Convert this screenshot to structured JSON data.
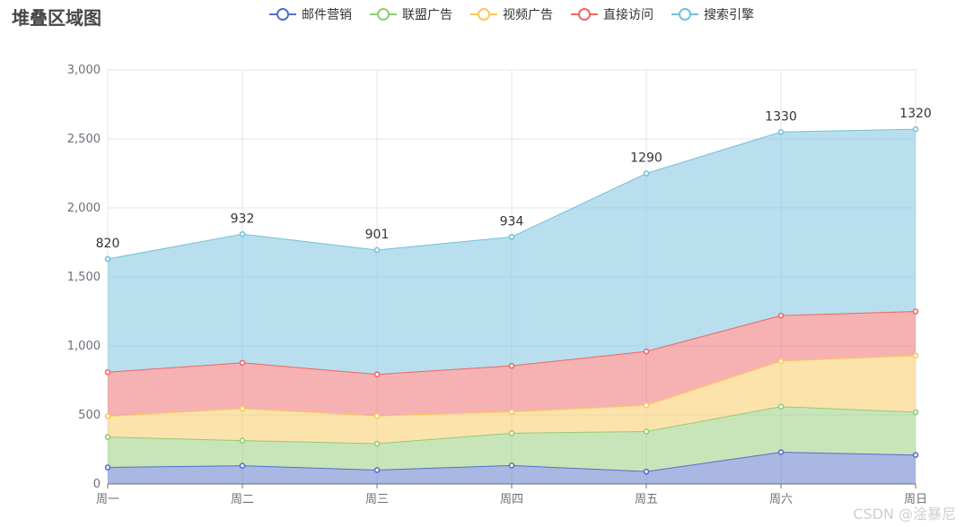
{
  "chart_data": {
    "type": "area",
    "stacked": true,
    "title": "堆叠区域图",
    "categories": [
      "周一",
      "周二",
      "周三",
      "周四",
      "周五",
      "周六",
      "周日"
    ],
    "ylim": [
      0,
      3000
    ],
    "yticks": [
      0,
      500,
      1000,
      1500,
      2000,
      2500,
      3000
    ],
    "ytick_labels": [
      "0",
      "500",
      "1,000",
      "1,500",
      "2,000",
      "2,500",
      "3,000"
    ],
    "grid": true,
    "legend_position": "top-center",
    "series": [
      {
        "name": "邮件营销",
        "values": [
          120,
          132,
          101,
          134,
          90,
          230,
          210
        ],
        "color": "#5470c6"
      },
      {
        "name": "联盟广告",
        "values": [
          220,
          182,
          191,
          234,
          290,
          330,
          310
        ],
        "color": "#91cc75"
      },
      {
        "name": "视频广告",
        "values": [
          150,
          232,
          201,
          154,
          190,
          330,
          410
        ],
        "color": "#fac858"
      },
      {
        "name": "直接访问",
        "values": [
          320,
          332,
          301,
          334,
          390,
          330,
          320
        ],
        "color": "#ee6666"
      },
      {
        "name": "搜索引擎",
        "values": [
          820,
          932,
          901,
          934,
          1290,
          1330,
          1320
        ],
        "color": "#73c0de"
      }
    ],
    "labeled_series": "搜索引擎"
  },
  "watermark": "CSDN @淦暴尼"
}
